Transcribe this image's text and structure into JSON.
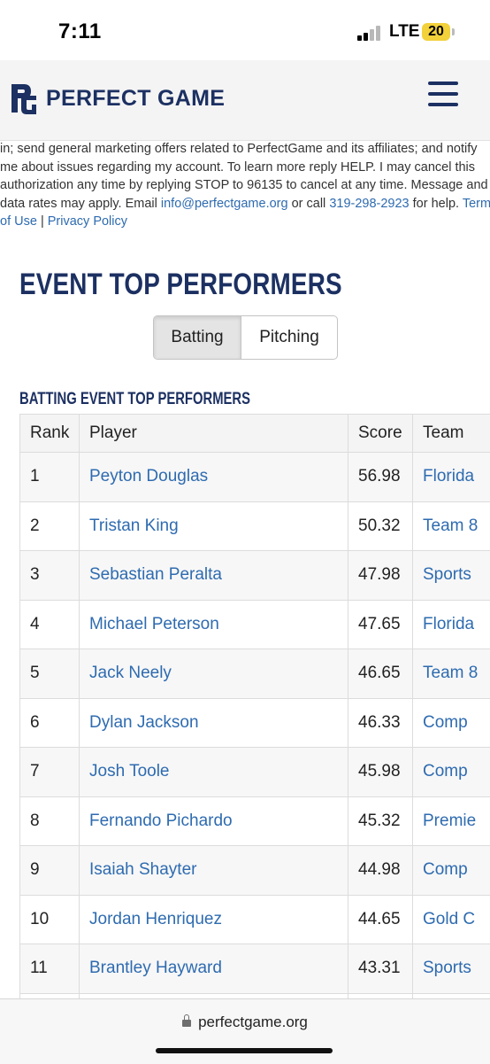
{
  "status_bar": {
    "time": "7:11",
    "network": "LTE",
    "battery": "20",
    "battery_color": "#f2d13b"
  },
  "header": {
    "brand_name": "PERFECT GAME",
    "brand_color": "#1c3062",
    "logo_icon": "pg-logo-icon",
    "menu_icon": "hamburger-menu-icon"
  },
  "disclaimer": {
    "line1": "in; send general marketing offers related to PerfectGame and its affiliates; and notify",
    "line2": "me about issues regarding my account. To learn more reply HELP. I may cancel this",
    "line3": "authorization any time by replying STOP to 96135 to cancel at any time. Message and",
    "line4_prefix": "data rates may apply. Email ",
    "email": "info@perfectgame.org",
    "line4_mid": " or call ",
    "phone": "319-298-2923",
    "line4_suffix": " for help. ",
    "terms_part1": "Terms",
    "terms_part2": "of Use",
    "separator": " | ",
    "privacy": "Privacy Policy",
    "link_color": "#2e6bb0"
  },
  "title": "EVENT TOP PERFORMERS",
  "toggle": {
    "batting": "Batting",
    "pitching": "Pitching",
    "active": "Batting"
  },
  "subtitle": "BATTING EVENT TOP PERFORMERS",
  "table": {
    "headers": {
      "rank": "Rank",
      "player": "Player",
      "score": "Score",
      "team": "Team"
    },
    "rows": [
      {
        "rank": "1",
        "player": "Peyton Douglas",
        "score": "56.98",
        "team": "Florida"
      },
      {
        "rank": "2",
        "player": "Tristan King",
        "score": "50.32",
        "team": "Team 8"
      },
      {
        "rank": "3",
        "player": "Sebastian Peralta",
        "score": "47.98",
        "team": "Sports"
      },
      {
        "rank": "4",
        "player": "Michael Peterson",
        "score": "47.65",
        "team": "Florida"
      },
      {
        "rank": "5",
        "player": "Jack Neely",
        "score": "46.65",
        "team": "Team 8"
      },
      {
        "rank": "6",
        "player": "Dylan Jackson",
        "score": "46.33",
        "team": "Comp"
      },
      {
        "rank": "7",
        "player": "Josh Toole",
        "score": "45.98",
        "team": "Comp"
      },
      {
        "rank": "8",
        "player": "Fernando Pichardo",
        "score": "45.32",
        "team": "Premie"
      },
      {
        "rank": "9",
        "player": "Isaiah Shayter",
        "score": "44.98",
        "team": "Comp"
      },
      {
        "rank": "10",
        "player": "Jordan Henriquez",
        "score": "44.65",
        "team": "Gold C"
      },
      {
        "rank": "11",
        "player": "Brantley Hayward",
        "score": "43.31",
        "team": "Sports"
      },
      {
        "rank": "",
        "player": "",
        "score": "",
        "team": ""
      }
    ]
  },
  "browser": {
    "address": "perfectgame.org",
    "lock_icon": "lock-icon"
  }
}
